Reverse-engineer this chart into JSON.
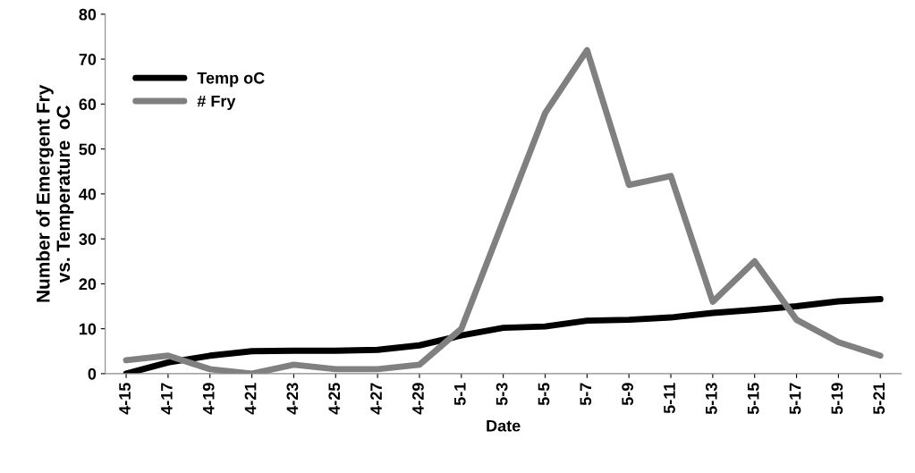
{
  "chart_data": {
    "type": "line",
    "xlabel": "Date",
    "ylabel": "Number of Emergent Fry\nvs. Temperature  oC",
    "categories": [
      "4-15",
      "4-17",
      "4-19",
      "4-21",
      "4-23",
      "4-25",
      "4-27",
      "4-29",
      "5-1",
      "5-3",
      "5-5",
      "5-7",
      "5-9",
      "5-11",
      "5-13",
      "5-15",
      "5-17",
      "5-19",
      "5-21"
    ],
    "series": [
      {
        "name": "Temp oC",
        "color": "#000000",
        "values": [
          0,
          2.5,
          4,
          5,
          5.1,
          5.1,
          5.3,
          6.3,
          8.5,
          10.2,
          10.5,
          11.8,
          12,
          12.5,
          13.5,
          14.2,
          15,
          16.1,
          16.6
        ]
      },
      {
        "name": "# Fry",
        "color": "#808080",
        "values": [
          3,
          4,
          1,
          0,
          2,
          1,
          1,
          2,
          10,
          34,
          58,
          72,
          42,
          44,
          16,
          25,
          12,
          7,
          4
        ]
      }
    ],
    "ylim": [
      0,
      80
    ],
    "yticks": [
      0,
      10,
      20,
      30,
      40,
      50,
      60,
      70,
      80
    ],
    "grid": false,
    "legend": "top left",
    "marker": "none",
    "line_style": "solid"
  }
}
